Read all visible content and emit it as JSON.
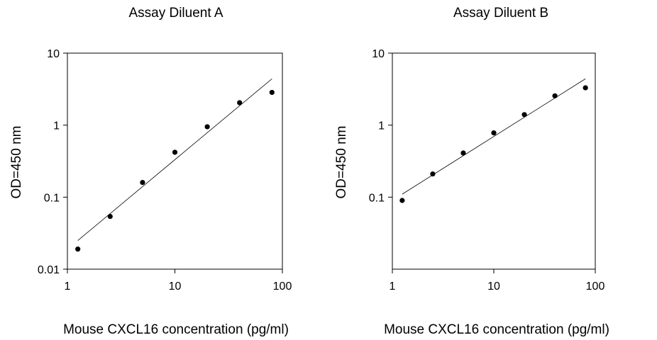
{
  "chart_data": [
    {
      "type": "scatter",
      "title": "Assay Diluent A",
      "xlabel": "Mouse CXCL16 concentration (pg/ml)",
      "ylabel": "OD=450 nm",
      "x_scale": "log",
      "y_scale": "log",
      "xlim": [
        1,
        100
      ],
      "ylim": [
        0.01,
        10
      ],
      "x_ticks": [
        "1",
        "10",
        "100"
      ],
      "y_ticks": [
        "0.01",
        "0.1",
        "1",
        "10"
      ],
      "grid": false,
      "series": [
        {
          "points": [
            {
              "x": 1.25,
              "y": 0.019
            },
            {
              "x": 2.5,
              "y": 0.054
            },
            {
              "x": 5,
              "y": 0.16
            },
            {
              "x": 10,
              "y": 0.42
            },
            {
              "x": 20,
              "y": 0.95
            },
            {
              "x": 40,
              "y": 2.05
            },
            {
              "x": 80,
              "y": 2.85
            }
          ],
          "fit_line": [
            {
              "x": 1.25,
              "y": 0.025
            },
            {
              "x": 80,
              "y": 4.4
            }
          ]
        }
      ]
    },
    {
      "type": "scatter",
      "title": "Assay Diluent B",
      "xlabel": "Mouse CXCL16 concentration (pg/ml)",
      "ylabel": "OD=450 nm",
      "x_scale": "log",
      "y_scale": "log",
      "xlim": [
        1,
        100
      ],
      "ylim": [
        0.01,
        10
      ],
      "x_ticks": [
        "1",
        "10",
        "100"
      ],
      "y_ticks": [
        "0.1",
        "1",
        "10"
      ],
      "grid": false,
      "series": [
        {
          "points": [
            {
              "x": 1.25,
              "y": 0.09
            },
            {
              "x": 2.5,
              "y": 0.21
            },
            {
              "x": 5,
              "y": 0.41
            },
            {
              "x": 10,
              "y": 0.78
            },
            {
              "x": 20,
              "y": 1.4
            },
            {
              "x": 40,
              "y": 2.55
            },
            {
              "x": 80,
              "y": 3.3
            }
          ],
          "fit_line": [
            {
              "x": 1.25,
              "y": 0.11
            },
            {
              "x": 80,
              "y": 4.4
            }
          ]
        }
      ]
    }
  ]
}
